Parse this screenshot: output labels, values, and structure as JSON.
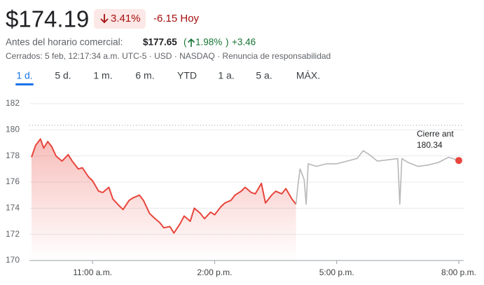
{
  "header": {
    "price": "$174.19",
    "change_pct": "3.41%",
    "change_abs": "-6.15 Hoy",
    "premarket_label": "Antes del horario comercial:",
    "premarket_price": "$177.65",
    "premarket_pct": "1.98%",
    "premarket_abs": "+3.46",
    "status": "Cerrados: 5 feb, 12:17:34 a.m. UTC-5 · USD · NASDAQ · Renuncia de responsabilidad"
  },
  "tabs": [
    "1 d.",
    "5 d.",
    "1 m.",
    "6 m.",
    "YTD",
    "1 a.",
    "5 a.",
    "MÁX."
  ],
  "selected_tab": 0,
  "chart_data": {
    "type": "line",
    "x": [
      9.5,
      9.6,
      9.72,
      9.8,
      9.9,
      10.0,
      10.1,
      10.25,
      10.4,
      10.5,
      10.65,
      10.75,
      10.9,
      11.0,
      11.15,
      11.25,
      11.4,
      11.5,
      11.65,
      11.75,
      11.9,
      12.0,
      12.15,
      12.25,
      12.4,
      12.5,
      12.65,
      12.75,
      12.9,
      13.0,
      13.15,
      13.25,
      13.4,
      13.5,
      13.65,
      13.75,
      13.9,
      14.0,
      14.15,
      14.25,
      14.4,
      14.5,
      14.65,
      14.75,
      14.9,
      15.0,
      15.15,
      15.25,
      15.4,
      15.5,
      15.65,
      15.75,
      15.9,
      16.0,
      16.05,
      16.1,
      16.2,
      16.25,
      16.3,
      16.5,
      16.75,
      17.0,
      17.25,
      17.5,
      17.65,
      17.8,
      18.0,
      18.25,
      18.5,
      18.55,
      18.6,
      18.75,
      19.0,
      19.25,
      19.5,
      19.75,
      20.0
    ],
    "series": [
      {
        "color": "#e8453c",
        "values": [
          177.9,
          178.8,
          179.3,
          178.6,
          179.1,
          178.7,
          178.0,
          177.6,
          178.1,
          177.6,
          177.0,
          177.1,
          176.4,
          176.1,
          175.3,
          175.2,
          175.6,
          174.7,
          174.2,
          173.9,
          174.6,
          174.8,
          175.0,
          174.6,
          173.6,
          173.3,
          172.9,
          172.5,
          172.6,
          172.1,
          172.8,
          173.4,
          173.0,
          174.0,
          173.6,
          173.2,
          173.7,
          173.5,
          174.1,
          174.4,
          174.6,
          175.0,
          175.3,
          175.6,
          175.2,
          175.1,
          175.9,
          174.4,
          175.0,
          175.3,
          175.1,
          175.5,
          174.7,
          174.3,
          null,
          null,
          null,
          null,
          null,
          null,
          null,
          null,
          null,
          null,
          null,
          null,
          null,
          null,
          null,
          null,
          null,
          null,
          null,
          null,
          null,
          null,
          null
        ]
      },
      {
        "color": "#b7b7b7",
        "values": [
          null,
          null,
          null,
          null,
          null,
          null,
          null,
          null,
          null,
          null,
          null,
          null,
          null,
          null,
          null,
          null,
          null,
          null,
          null,
          null,
          null,
          null,
          null,
          null,
          null,
          null,
          null,
          null,
          null,
          null,
          null,
          null,
          null,
          null,
          null,
          null,
          null,
          null,
          null,
          null,
          null,
          null,
          null,
          null,
          null,
          null,
          null,
          null,
          null,
          null,
          null,
          null,
          null,
          174.3,
          175.8,
          177.0,
          176.2,
          174.3,
          177.4,
          177.2,
          177.4,
          177.4,
          177.6,
          177.8,
          178.4,
          178.1,
          177.6,
          177.7,
          177.8,
          174.3,
          177.8,
          177.5,
          177.2,
          177.3,
          177.5,
          177.9,
          177.65
        ]
      }
    ],
    "xlim": [
      9.5,
      20
    ],
    "xticks": [
      {
        "value": 11,
        "label": "11:00 a.m."
      },
      {
        "value": 14,
        "label": "2:00 p.m."
      },
      {
        "value": 17,
        "label": "5:00 p.m."
      },
      {
        "value": 20,
        "label": "8:00 p.m."
      }
    ],
    "ylim": [
      170,
      182
    ],
    "yticks": [
      170,
      172,
      174,
      176,
      178,
      180,
      182
    ],
    "grid": true,
    "reference": {
      "label": "Cierre ant",
      "value": 180.34
    }
  }
}
